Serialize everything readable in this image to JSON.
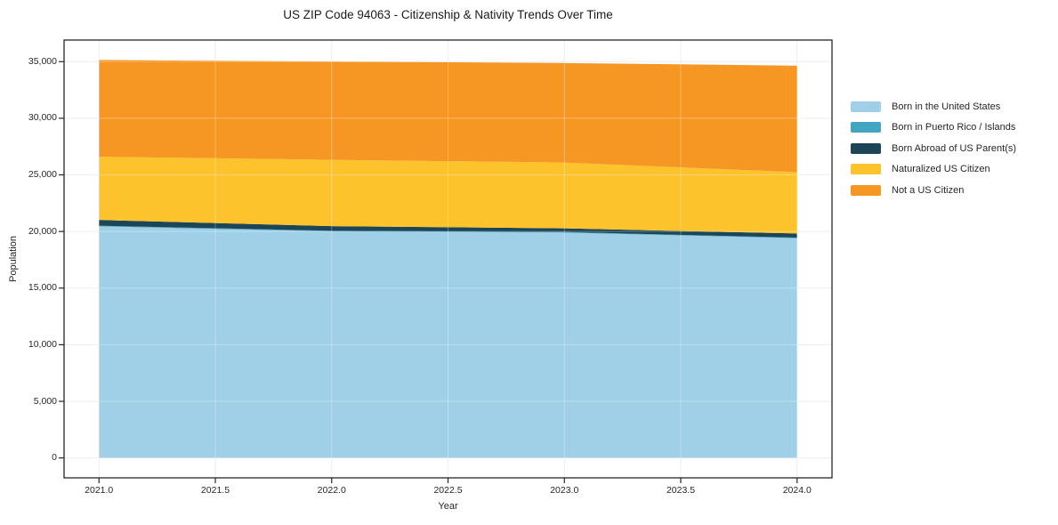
{
  "chart_data": {
    "type": "area",
    "stacked": true,
    "title": "US ZIP Code 94063 - Citizenship & Nativity Trends Over Time",
    "xlabel": "Year",
    "ylabel": "Population",
    "x": [
      2021,
      2022,
      2023,
      2024
    ],
    "series": [
      {
        "name": "Born in the United States",
        "color": "#9FD0E7",
        "values": [
          20450,
          20000,
          19900,
          19400
        ]
      },
      {
        "name": "Born in Puerto Rico / Islands",
        "color": "#43A5C1",
        "values": [
          60,
          60,
          50,
          60
        ]
      },
      {
        "name": "Born Abroad of US Parent(s)",
        "color": "#1C4557",
        "values": [
          510,
          410,
          330,
          360
        ]
      },
      {
        "name": "Naturalized US Citizen",
        "color": "#FDC32D",
        "values": [
          5580,
          5860,
          5810,
          5420
        ]
      },
      {
        "name": "Not a US Citizen",
        "color": "#F79723",
        "values": [
          8550,
          8680,
          8790,
          9400
        ]
      }
    ],
    "stack_totals": [
      35150,
      35010,
      34880,
      34640
    ],
    "xlim": [
      2020.85,
      2024.15
    ],
    "ylim": [
      -1757,
      36908
    ],
    "x_ticks": {
      "values": [
        2021.0,
        2021.5,
        2022.0,
        2022.5,
        2023.0,
        2023.5,
        2024.0
      ],
      "labels": [
        "2021.0",
        "2021.5",
        "2022.0",
        "2022.5",
        "2023.0",
        "2023.5",
        "2024.0"
      ]
    },
    "y_ticks": {
      "values": [
        0,
        5000,
        10000,
        15000,
        20000,
        25000,
        30000,
        35000
      ],
      "labels": [
        "0",
        "5,000",
        "10,000",
        "15,000",
        "20,000",
        "25,000",
        "30,000",
        "35,000"
      ]
    },
    "grid": true,
    "legend_position": "right-outside",
    "colors": {
      "grid": "#e7e7ef",
      "grid_over_area": "rgba(255,255,255,0.30)",
      "spine": "#262626",
      "background": "#ffffff"
    }
  }
}
